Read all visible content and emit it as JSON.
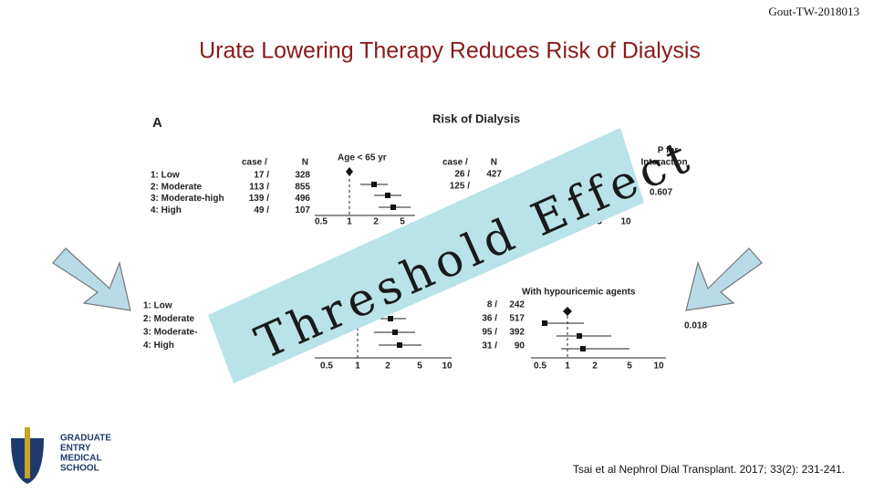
{
  "header": {
    "code": "Gout-TW-2018013",
    "title": "Urate Lowering Therapy Reduces Risk of Dialysis"
  },
  "figure": {
    "panel": "A",
    "title": "Risk of Dialysis",
    "interaction_header": [
      "P for",
      "Interaction"
    ],
    "top_left": {
      "subgroup": "Age < 65 yr",
      "columns": [
        "case /",
        "N"
      ],
      "rows": [
        [
          "1: Low",
          "17 /",
          "328"
        ],
        [
          "2: Moderate",
          "113 /",
          "855"
        ],
        [
          "3: Moderate-high",
          "139 /",
          "496"
        ],
        [
          "4: High",
          "49 /",
          "107"
        ]
      ],
      "ticks": [
        "0.5",
        "1",
        "2",
        "5"
      ]
    },
    "top_right": {
      "columns": [
        "case /",
        "N"
      ],
      "rows": [
        [
          "26 /",
          "427"
        ],
        [
          "125 /"
        ]
      ],
      "ticks": [
        "5",
        "10"
      ],
      "p_value": "0.607"
    },
    "bottom_left": {
      "labels": [
        "1: Low",
        "2: Moderate",
        "3: Moderate-",
        "4: High"
      ],
      "ticks": [
        "0.5",
        "1",
        "2",
        "5",
        "10"
      ]
    },
    "bottom_right": {
      "subgroup": "With hypouricemic agents",
      "rows": [
        [
          "8 /",
          "242"
        ],
        [
          "36 /",
          "517"
        ],
        [
          "95 /",
          "392"
        ],
        [
          "31 /",
          "90"
        ]
      ],
      "ticks": [
        "0.5",
        "1",
        "2",
        "5",
        "10"
      ],
      "p_value": "0.018"
    }
  },
  "overlay": "Threshold Effect",
  "citation": "Tsai et al Nephrol Dial Transplant. 2017; 33(2): 231-241.",
  "logo": [
    "GRADUATE",
    "ENTRY",
    "MEDICAL",
    "SCHOOL"
  ]
}
